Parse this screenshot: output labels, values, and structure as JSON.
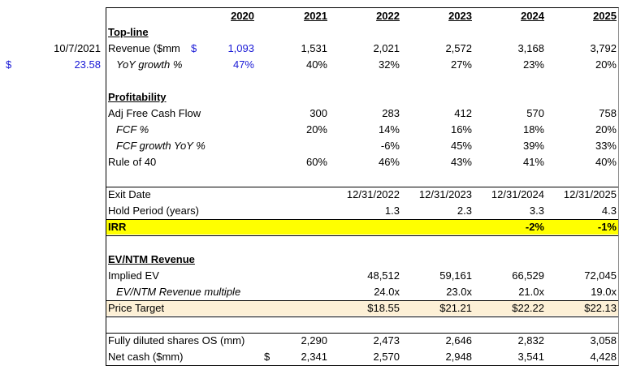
{
  "header": {
    "years": [
      "2020",
      "2021",
      "2022",
      "2023",
      "2024",
      "2025"
    ]
  },
  "sections": [
    {
      "title": "Top-line",
      "rows": [
        {
          "label": "Revenue ($mm",
          "side": "10/7/2021",
          "currency_symbol": "$",
          "values": [
            "1,093",
            "1,531",
            "2,021",
            "2,572",
            "3,168",
            "3,792"
          ],
          "input_color": "#1a1ad6"
        },
        {
          "label": "YoY growth %",
          "style": "italic",
          "side_currency": "$",
          "side": "23.58",
          "values": [
            "47%",
            "40%",
            "32%",
            "27%",
            "23%",
            "20%"
          ],
          "input_color": "#1a1ad6"
        }
      ]
    },
    {
      "title": "Profitability",
      "rows": [
        {
          "label": "Adj Free Cash Flow",
          "values": [
            null,
            "300",
            "283",
            "412",
            "570",
            "758"
          ]
        },
        {
          "label": "FCF %",
          "style": "italic",
          "values": [
            null,
            "20%",
            "14%",
            "16%",
            "18%",
            "20%"
          ]
        },
        {
          "label": "FCF growth YoY %",
          "style": "italic",
          "values": [
            null,
            null,
            "-6%",
            "45%",
            "39%",
            "33%"
          ]
        },
        {
          "label": "Rule of 40",
          "values": [
            null,
            "60%",
            "46%",
            "43%",
            "41%",
            "40%"
          ]
        }
      ]
    },
    {
      "rows": [
        {
          "label": "Exit Date",
          "values": [
            null,
            null,
            "12/31/2022",
            "12/31/2023",
            "12/31/2024",
            "12/31/2025"
          ]
        },
        {
          "label": "Hold Period (years)",
          "values": [
            null,
            null,
            "1.3",
            "2.3",
            "3.3",
            "4.3"
          ]
        },
        {
          "label": "IRR",
          "style": "bold",
          "fill": "#ffff00",
          "values": [
            null,
            null,
            null,
            null,
            "-2%",
            "-1%"
          ]
        }
      ]
    },
    {
      "title": "EV/NTM Revenue",
      "rows": [
        {
          "label": "Implied EV",
          "values": [
            null,
            null,
            "48,512",
            "59,161",
            "66,529",
            "72,045"
          ]
        },
        {
          "label": "EV/NTM Revenue multiple",
          "style": "italic",
          "values": [
            null,
            null,
            "24.0x",
            "23.0x",
            "21.0x",
            "19.0x"
          ]
        },
        {
          "label": "Price Target",
          "fill": "#fdf0d6",
          "values": [
            null,
            null,
            "$18.55",
            "$21.21",
            "$22.22",
            "$22.13"
          ]
        }
      ]
    },
    {
      "rows": [
        {
          "label": "Fully diluted shares OS (mm)",
          "values": [
            null,
            "2,290",
            "2,473",
            "2,646",
            "2,832",
            "3,058"
          ]
        },
        {
          "label": "Net cash ($mm)",
          "currency_symbol": "$",
          "values": [
            null,
            "2,341",
            "2,570",
            "2,948",
            "3,541",
            "4,428"
          ]
        }
      ]
    }
  ]
}
